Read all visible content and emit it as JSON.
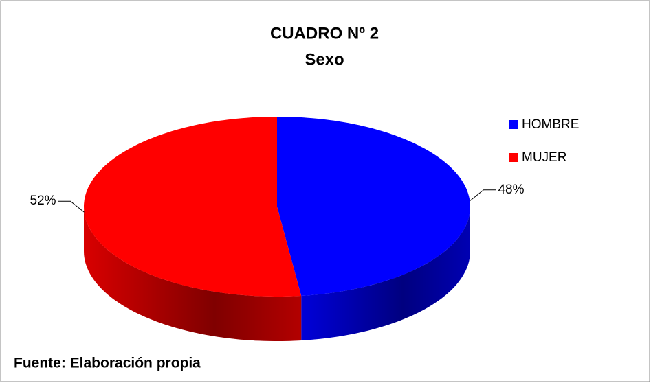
{
  "chart_data": {
    "type": "pie",
    "title": "CUADRO Nº 2",
    "subtitle": "Sexo",
    "categories": [
      "HOMBRE",
      "MUJER"
    ],
    "values": [
      48,
      52
    ],
    "value_labels": [
      "48%",
      "52%"
    ],
    "colors": [
      "#0000ff",
      "#ff0000"
    ],
    "legend": "right",
    "annotation": "Fuente: Elaboración propia"
  }
}
